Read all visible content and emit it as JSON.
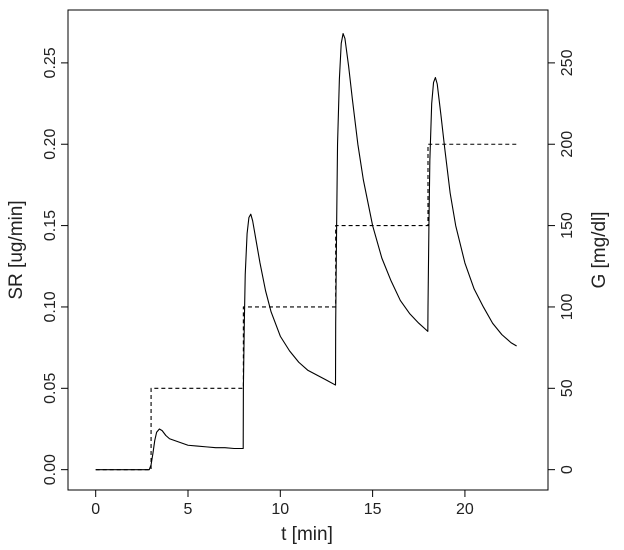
{
  "chart_data": {
    "type": "line",
    "xlabel": "t [min]",
    "ylabel": "SR [ug/min]",
    "y2label": "G [mg/dl]",
    "xlim": [
      -1.5,
      24.5
    ],
    "ylim": [
      -0.0125,
      0.2825
    ],
    "y2lim": [
      -12.5,
      282.5
    ],
    "x_ticks": [
      0,
      5,
      10,
      15,
      20
    ],
    "y_ticks": [
      0.0,
      0.05,
      0.1,
      0.15,
      0.2,
      0.25
    ],
    "y_tick_labels": [
      "0.00",
      "0.05",
      "0.10",
      "0.15",
      "0.20",
      "0.25"
    ],
    "y2_ticks": [
      0,
      50,
      100,
      150,
      200,
      250
    ],
    "grid": false,
    "series": [
      {
        "axis": "left",
        "style": "solid",
        "color": "#000000",
        "x": [
          0,
          2.9,
          3.0,
          3.1,
          3.2,
          3.3,
          3.45,
          3.6,
          3.8,
          4.0,
          4.5,
          5.0,
          5.5,
          6.0,
          6.5,
          7.0,
          7.5,
          7.99,
          8.0,
          8.05,
          8.1,
          8.2,
          8.3,
          8.4,
          8.5,
          8.7,
          8.9,
          9.2,
          9.5,
          10.0,
          10.5,
          11.0,
          11.5,
          12.0,
          12.5,
          12.99,
          13.0,
          13.05,
          13.1,
          13.2,
          13.3,
          13.4,
          13.5,
          13.7,
          13.9,
          14.2,
          14.5,
          15.0,
          15.5,
          16.0,
          16.5,
          17.0,
          17.5,
          17.99,
          18.0,
          18.05,
          18.1,
          18.2,
          18.3,
          18.4,
          18.5,
          18.7,
          18.9,
          19.2,
          19.5,
          20.0,
          20.5,
          21.0,
          21.5,
          22.0,
          22.5,
          22.8
        ],
        "y": [
          0.0,
          0.0,
          0.003,
          0.01,
          0.018,
          0.023,
          0.025,
          0.024,
          0.021,
          0.019,
          0.017,
          0.015,
          0.0145,
          0.014,
          0.0135,
          0.0135,
          0.013,
          0.013,
          0.05,
          0.09,
          0.12,
          0.145,
          0.155,
          0.157,
          0.153,
          0.14,
          0.127,
          0.11,
          0.097,
          0.082,
          0.073,
          0.066,
          0.061,
          0.058,
          0.055,
          0.052,
          0.09,
          0.15,
          0.2,
          0.24,
          0.262,
          0.268,
          0.265,
          0.248,
          0.228,
          0.2,
          0.178,
          0.15,
          0.13,
          0.116,
          0.104,
          0.096,
          0.09,
          0.085,
          0.1,
          0.15,
          0.19,
          0.225,
          0.238,
          0.241,
          0.237,
          0.218,
          0.198,
          0.17,
          0.15,
          0.127,
          0.111,
          0.1,
          0.09,
          0.083,
          0.078,
          0.076
        ]
      },
      {
        "axis": "right",
        "style": "dashed",
        "color": "#000000",
        "x": [
          0,
          3,
          3,
          8,
          8,
          13,
          13,
          18,
          18,
          22.8
        ],
        "y": [
          0,
          0,
          50,
          50,
          100,
          100,
          150,
          150,
          200,
          200
        ]
      }
    ]
  }
}
